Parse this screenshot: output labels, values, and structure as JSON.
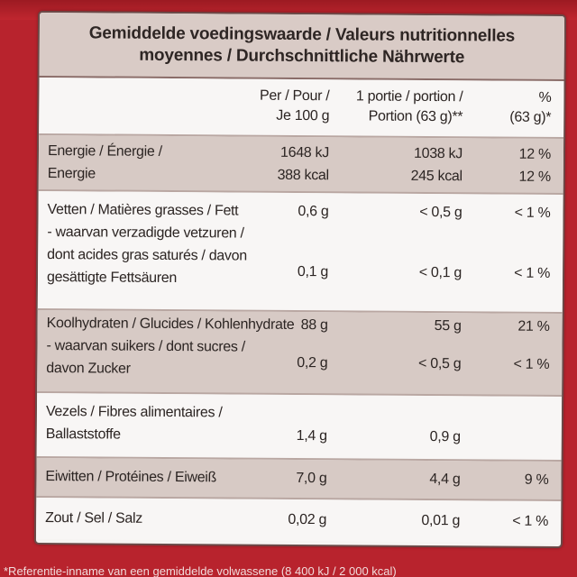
{
  "header": {
    "line1": "Gemiddelde voedingswaarde / Valeurs nutritionnelles",
    "line2": "moyennes / Durchschnittliche Nährwerte"
  },
  "columns": {
    "per100_line1": "Per / Pour /",
    "per100_line2": "Je 100 g",
    "portion_line1": "1 portie / portion /",
    "portion_line2": "Portion (63 g)**",
    "pct_line1": "%",
    "pct_line2": "(63 g)*"
  },
  "rows": {
    "energy": {
      "label1": "Energie / Énergie /",
      "label2": "Energie",
      "per100_kj": "1648 kJ",
      "per100_kcal": "388 kcal",
      "portion_kj": "1038 kJ",
      "portion_kcal": "245 kcal",
      "pct_kj": "12 %",
      "pct_kcal": "12 %"
    },
    "fat": {
      "label": "Vetten / Matières grasses / Fett",
      "per100": "0,6 g",
      "portion": "< 0,5 g",
      "pct": "< 1 %",
      "sat_label1": "- waarvan verzadigde vetzuren /",
      "sat_label2": "dont acides gras saturés / davon",
      "sat_label3": "gesättigte Fettsäuren",
      "sat_per100": "0,1 g",
      "sat_portion": "< 0,1 g",
      "sat_pct": "< 1 %"
    },
    "carbs": {
      "label": "Koolhydraten / Glucides / Kohlenhydrate",
      "per100": "88 g",
      "portion": "55 g",
      "pct": "21 %",
      "sugar_label1": "- waarvan suikers / dont sucres /",
      "sugar_label2": "davon Zucker",
      "sugar_per100": "0,2 g",
      "sugar_portion": "< 0,5 g",
      "sugar_pct": "< 1 %"
    },
    "fibre": {
      "label1": "Vezels / Fibres alimentaires /",
      "label2": "Ballaststoffe",
      "per100": "1,4 g",
      "portion": "0,9 g",
      "pct": ""
    },
    "protein": {
      "label": "Eiwitten / Protéines / Eiweiß",
      "per100": "7,0 g",
      "portion": "4,4 g",
      "pct": "9 %"
    },
    "salt": {
      "label": "Zout / Sel / Salz",
      "per100": "0,02 g",
      "portion": "0,01 g",
      "pct": "< 1 %"
    }
  },
  "footnote": "*Referentie-inname van een gemiddelde volwassene (8 400 kJ / 2 000 kcal)"
}
